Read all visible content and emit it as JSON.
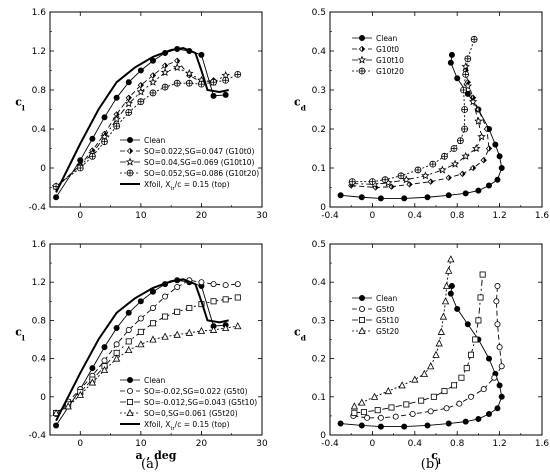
{
  "panels": [
    {
      "label": "(a)"
    },
    {
      "label": "(b)"
    }
  ],
  "colors": {
    "ink": "#000000",
    "white": "#ffffff"
  },
  "chart_data": [
    {
      "type": "line",
      "xlim": [
        -5,
        30
      ],
      "ylim": [
        -0.4,
        1.6
      ],
      "xticks": [
        "0",
        "10",
        "20",
        "30"
      ],
      "yticks": [
        "-0.4",
        "0",
        "0.4",
        "0.8",
        "1.2",
        "1.6"
      ],
      "xlabel": "",
      "ylabel": "c",
      "ylabel_sub": "l",
      "legend": "lower-right",
      "series": [
        {
          "name": "Clean",
          "marker": "circle-filled",
          "dash": "solid",
          "x": [
            -4,
            0,
            2,
            4,
            6,
            8,
            10,
            12,
            14,
            16,
            18,
            20,
            22,
            24
          ],
          "y": [
            -0.3,
            0.08,
            0.3,
            0.52,
            0.72,
            0.88,
            1.0,
            1.1,
            1.18,
            1.22,
            1.2,
            1.16,
            0.74,
            0.75
          ]
        },
        {
          "name": "SO=0.022,SG=0.047 (G10t0)",
          "marker": "halfdiamond",
          "dash": "5,3",
          "x": [
            -4,
            0,
            2,
            4,
            6,
            8,
            10,
            12,
            14,
            16,
            18,
            20,
            22
          ],
          "y": [
            -0.2,
            0.03,
            0.18,
            0.35,
            0.55,
            0.72,
            0.85,
            0.95,
            1.05,
            1.1,
            0.95,
            0.88,
            0.9
          ]
        },
        {
          "name": "SO=0.04,SG=0.069 (G10t10)",
          "marker": "star",
          "dash": "6,3,2,3",
          "x": [
            -4,
            0,
            2,
            4,
            6,
            8,
            10,
            12,
            14,
            16,
            18,
            20,
            22,
            24
          ],
          "y": [
            -0.19,
            0.02,
            0.15,
            0.32,
            0.5,
            0.66,
            0.78,
            0.88,
            0.98,
            1.03,
            0.97,
            0.9,
            0.88,
            0.95
          ]
        },
        {
          "name": "SO=0.052,SG=0.086 (G10t20)",
          "marker": "pluscircle",
          "dash": "2,2",
          "x": [
            -4,
            0,
            2,
            4,
            6,
            8,
            10,
            12,
            14,
            16,
            18,
            20,
            22,
            24,
            26
          ],
          "y": [
            -0.19,
            0.0,
            0.12,
            0.27,
            0.43,
            0.57,
            0.68,
            0.77,
            0.83,
            0.87,
            0.87,
            0.86,
            0.88,
            0.9,
            0.96
          ]
        },
        {
          "name": "Xfoil, X",
          "name_sub": "tr",
          "name_tail": "/c = 0.15 (top)",
          "marker": "none",
          "dash": "solid",
          "thick": true,
          "x": [
            -4,
            0,
            3,
            6,
            9,
            12,
            15,
            17,
            19,
            20,
            21,
            23,
            24.5
          ],
          "y": [
            -0.25,
            0.25,
            0.6,
            0.88,
            1.03,
            1.14,
            1.21,
            1.23,
            1.18,
            1.0,
            0.8,
            0.78,
            0.8
          ]
        }
      ]
    },
    {
      "type": "line",
      "xlim": [
        -5,
        30
      ],
      "ylim": [
        -0.4,
        1.6
      ],
      "xticks": [
        "0",
        "10",
        "20",
        "30"
      ],
      "yticks": [
        "-0.4",
        "0",
        "0.4",
        "0.8",
        "1.2",
        "1.6"
      ],
      "xlabel": "a , deg",
      "ylabel": "c",
      "ylabel_sub": "l",
      "legend": "lower-right",
      "series": [
        {
          "name": "Clean",
          "marker": "circle-filled",
          "dash": "solid",
          "x": [
            -4,
            0,
            2,
            4,
            6,
            8,
            10,
            12,
            14,
            16,
            18,
            20,
            22,
            24
          ],
          "y": [
            -0.3,
            0.08,
            0.3,
            0.52,
            0.72,
            0.88,
            1.0,
            1.1,
            1.18,
            1.22,
            1.2,
            1.16,
            0.74,
            0.75
          ]
        },
        {
          "name": "SO=-0.02,SG=0.022 (G5t0)",
          "marker": "circle-open",
          "dash": "5,3",
          "x": [
            -4,
            -2,
            0,
            2,
            4,
            6,
            8,
            10,
            12,
            14,
            16,
            18,
            20,
            22,
            24,
            26
          ],
          "y": [
            -0.18,
            -0.05,
            0.08,
            0.22,
            0.38,
            0.55,
            0.7,
            0.82,
            0.93,
            1.05,
            1.15,
            1.22,
            1.2,
            1.18,
            1.17,
            1.18
          ]
        },
        {
          "name": "SO=-0.012,SG=0.043 (G5t10)",
          "marker": "square-open",
          "dash": "6,3,2,3",
          "x": [
            -4,
            -2,
            0,
            2,
            4,
            6,
            8,
            10,
            12,
            14,
            16,
            18,
            20,
            22,
            24,
            26
          ],
          "y": [
            -0.17,
            -0.08,
            0.05,
            0.18,
            0.32,
            0.46,
            0.58,
            0.68,
            0.77,
            0.84,
            0.89,
            0.93,
            0.97,
            1.0,
            1.02,
            1.04
          ]
        },
        {
          "name": "SO=0,SG=0.061 (G5t20)",
          "marker": "triangle-open",
          "dash": "2,2",
          "x": [
            -4,
            -2,
            0,
            2,
            4,
            6,
            8,
            10,
            12,
            14,
            16,
            18,
            20,
            22,
            24,
            26
          ],
          "y": [
            -0.17,
            -0.1,
            0.02,
            0.15,
            0.28,
            0.4,
            0.49,
            0.55,
            0.6,
            0.63,
            0.65,
            0.67,
            0.69,
            0.7,
            0.72,
            0.74
          ]
        },
        {
          "name": "Xfoil, X",
          "name_sub": "tr",
          "name_tail": "/c = 0.15 (top)",
          "marker": "none",
          "dash": "solid",
          "thick": true,
          "x": [
            -4,
            0,
            3,
            6,
            9,
            12,
            15,
            17,
            19,
            20,
            21,
            23,
            24.5
          ],
          "y": [
            -0.25,
            0.25,
            0.6,
            0.88,
            1.03,
            1.14,
            1.21,
            1.23,
            1.18,
            1.0,
            0.8,
            0.78,
            0.8
          ]
        }
      ]
    },
    {
      "type": "line",
      "xlim": [
        -0.4,
        1.6
      ],
      "ylim": [
        0,
        0.5
      ],
      "xticks": [
        "-0.4",
        "0",
        "0.4",
        "0.8",
        "1.2",
        "1.6"
      ],
      "yticks": [
        "0",
        "0.1",
        "0.2",
        "0.3",
        "0.4",
        "0.5"
      ],
      "xlabel": "",
      "ylabel": "c",
      "ylabel_sub": "d",
      "legend": "upper-left",
      "series": [
        {
          "name": "Clean",
          "marker": "circle-filled",
          "dash": "solid",
          "x": [
            -0.3,
            -0.1,
            0.08,
            0.3,
            0.52,
            0.72,
            0.88,
            1.0,
            1.1,
            1.18,
            1.22,
            1.2,
            1.16,
            1.1,
            1.0,
            0.9,
            0.8,
            0.74,
            0.75
          ],
          "y": [
            0.03,
            0.025,
            0.022,
            0.022,
            0.025,
            0.03,
            0.035,
            0.042,
            0.055,
            0.07,
            0.1,
            0.13,
            0.16,
            0.2,
            0.25,
            0.29,
            0.33,
            0.37,
            0.39
          ]
        },
        {
          "name": "G10t0",
          "marker": "halfdiamond",
          "dash": "5,3",
          "x": [
            -0.2,
            0.03,
            0.18,
            0.35,
            0.55,
            0.72,
            0.85,
            0.95,
            1.05,
            1.1,
            1.08,
            1.0,
            0.95,
            0.9,
            0.88
          ],
          "y": [
            0.055,
            0.05,
            0.052,
            0.058,
            0.065,
            0.075,
            0.085,
            0.1,
            0.12,
            0.15,
            0.2,
            0.25,
            0.28,
            0.32,
            0.35
          ]
        },
        {
          "name": "G10t10",
          "marker": "star",
          "dash": "6,3,2,3",
          "x": [
            -0.19,
            0.02,
            0.15,
            0.32,
            0.5,
            0.66,
            0.78,
            0.88,
            0.98,
            1.03,
            1.0,
            0.95,
            0.9,
            0.88
          ],
          "y": [
            0.06,
            0.058,
            0.062,
            0.07,
            0.08,
            0.095,
            0.11,
            0.13,
            0.15,
            0.18,
            0.22,
            0.27,
            0.31,
            0.36
          ]
        },
        {
          "name": "G10t20",
          "marker": "pluscircle",
          "dash": "2,2",
          "x": [
            -0.19,
            0.0,
            0.12,
            0.27,
            0.43,
            0.57,
            0.68,
            0.77,
            0.83,
            0.87,
            0.87,
            0.86,
            0.88,
            0.9,
            0.96
          ],
          "y": [
            0.065,
            0.065,
            0.07,
            0.08,
            0.095,
            0.11,
            0.13,
            0.15,
            0.17,
            0.2,
            0.25,
            0.3,
            0.34,
            0.38,
            0.43
          ]
        }
      ]
    },
    {
      "type": "line",
      "xlim": [
        -0.4,
        1.6
      ],
      "ylim": [
        0,
        0.5
      ],
      "xticks": [
        "-0.4",
        "0",
        "0.4",
        "0.8",
        "1.2",
        "1.6"
      ],
      "yticks": [
        "0",
        "0.1",
        "0.2",
        "0.3",
        "0.4",
        "0.5"
      ],
      "xlabel": "c",
      "xlabel_sub": "l",
      "ylabel": "c",
      "ylabel_sub": "d",
      "legend": "center-left",
      "series": [
        {
          "name": "Clean",
          "marker": "circle-filled",
          "dash": "solid",
          "x": [
            -0.3,
            -0.1,
            0.08,
            0.3,
            0.52,
            0.72,
            0.88,
            1.0,
            1.1,
            1.18,
            1.22,
            1.2,
            1.16,
            1.1,
            1.0,
            0.9,
            0.8,
            0.74,
            0.75
          ],
          "y": [
            0.03,
            0.025,
            0.022,
            0.022,
            0.025,
            0.03,
            0.035,
            0.042,
            0.055,
            0.07,
            0.1,
            0.13,
            0.16,
            0.2,
            0.25,
            0.29,
            0.33,
            0.37,
            0.39
          ]
        },
        {
          "name": "G5t0",
          "marker": "circle-open",
          "dash": "5,3",
          "x": [
            -0.18,
            -0.05,
            0.08,
            0.22,
            0.38,
            0.55,
            0.7,
            0.82,
            0.93,
            1.05,
            1.15,
            1.22,
            1.2,
            1.18,
            1.17,
            1.18
          ],
          "y": [
            0.05,
            0.045,
            0.045,
            0.048,
            0.055,
            0.062,
            0.07,
            0.082,
            0.1,
            0.12,
            0.15,
            0.18,
            0.23,
            0.29,
            0.35,
            0.39
          ]
        },
        {
          "name": "G5t10",
          "marker": "square-open",
          "dash": "6,3,2,3",
          "x": [
            -0.17,
            -0.08,
            0.05,
            0.18,
            0.32,
            0.46,
            0.58,
            0.68,
            0.77,
            0.84,
            0.89,
            0.93,
            0.97,
            1.0,
            1.02,
            1.04
          ],
          "y": [
            0.058,
            0.06,
            0.065,
            0.072,
            0.08,
            0.09,
            0.1,
            0.115,
            0.13,
            0.15,
            0.175,
            0.21,
            0.25,
            0.3,
            0.36,
            0.42
          ]
        },
        {
          "name": "G5t20",
          "marker": "triangle-open",
          "dash": "2,2",
          "x": [
            -0.17,
            -0.1,
            0.02,
            0.15,
            0.28,
            0.4,
            0.49,
            0.55,
            0.6,
            0.63,
            0.65,
            0.67,
            0.69,
            0.7,
            0.72,
            0.74
          ],
          "y": [
            0.075,
            0.085,
            0.1,
            0.115,
            0.13,
            0.145,
            0.16,
            0.18,
            0.21,
            0.24,
            0.27,
            0.31,
            0.35,
            0.39,
            0.43,
            0.46
          ]
        }
      ]
    }
  ]
}
